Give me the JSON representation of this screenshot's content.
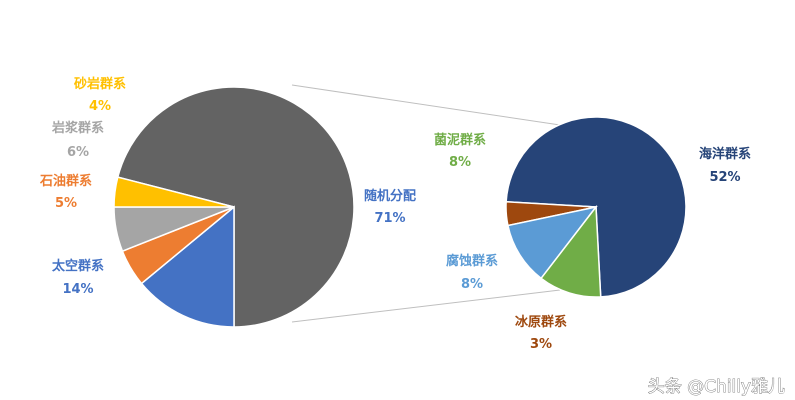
{
  "chart_data": {
    "type": "pie",
    "variant": "pie-of-pie",
    "title": "",
    "unit": "%",
    "main_pie": {
      "slices": [
        {
          "name": "随机分配",
          "value": 71,
          "label": "71%",
          "color": "#636363",
          "split": true
        },
        {
          "name": "太空群系",
          "value": 14,
          "label": "14%",
          "color": "#4472C4"
        },
        {
          "name": "石油群系",
          "value": 5,
          "label": "5%",
          "color": "#ED7D31"
        },
        {
          "name": "岩浆群系",
          "value": 6,
          "label": "6%",
          "color": "#A5A5A5"
        },
        {
          "name": "砂岩群系",
          "value": 4,
          "label": "4%",
          "color": "#FFC000"
        }
      ]
    },
    "secondary_pie": {
      "slices": [
        {
          "name": "海洋群系",
          "value": 52,
          "label": "52%",
          "color": "#264478"
        },
        {
          "name": "冰原群系",
          "value": 3,
          "label": "3%",
          "color": "#9E480E"
        },
        {
          "name": "腐蚀群系",
          "value": 8,
          "label": "8%",
          "color": "#5B9BD5"
        },
        {
          "name": "菌泥群系",
          "value": 8,
          "label": "8%",
          "color": "#70AD47"
        }
      ]
    },
    "connector_color": "#bfbfbf",
    "legend": "none"
  },
  "watermark": "头条 @Chilly雅儿"
}
